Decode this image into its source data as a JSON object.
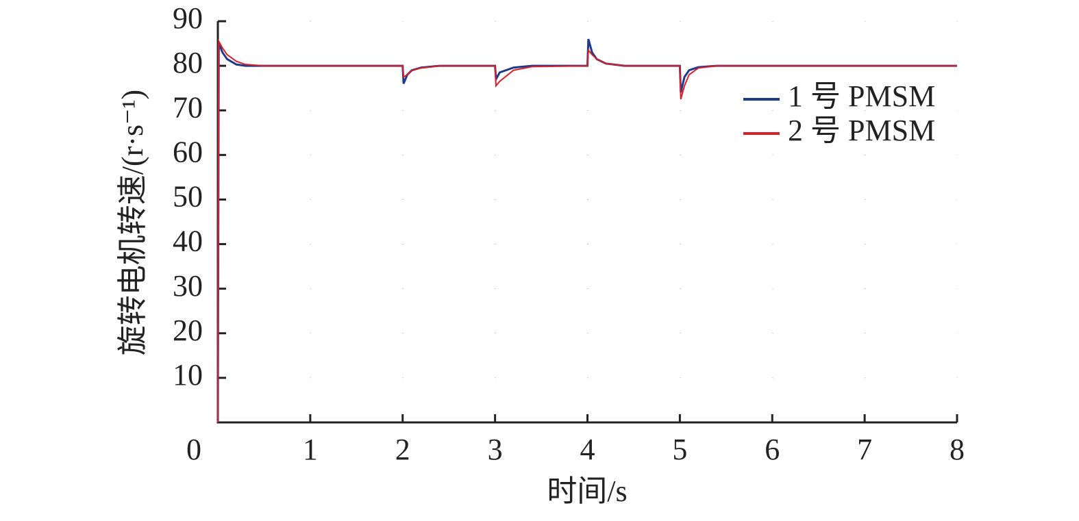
{
  "chart_data": {
    "type": "line",
    "xlabel": "时间/s",
    "ylabel": "旋转电机转速/(r·s⁻¹)",
    "x": [
      0,
      0.01,
      0.05,
      0.1,
      0.2,
      0.3,
      0.5,
      2.0,
      2.01,
      2.05,
      2.1,
      2.2,
      2.4,
      3.0,
      3.01,
      3.05,
      3.2,
      3.4,
      4.0,
      4.01,
      4.05,
      4.1,
      4.2,
      4.4,
      5.0,
      5.01,
      5.05,
      5.1,
      5.2,
      5.4,
      8
    ],
    "series": [
      {
        "name": "1 号 PMSM",
        "color": "#1f3a8a",
        "values": [
          0,
          85,
          83,
          81.5,
          80.3,
          80,
          80,
          80,
          76,
          78,
          79,
          79.6,
          80,
          80,
          77,
          78.5,
          79.6,
          80,
          80,
          86,
          83,
          81.5,
          80.5,
          80,
          80,
          74,
          77.5,
          79,
          79.7,
          80,
          80
        ]
      },
      {
        "name": "2 号 PMSM",
        "color": "#d9202a",
        "values": [
          0,
          85.5,
          84,
          82.5,
          81,
          80.3,
          80,
          80,
          77.5,
          78,
          79,
          79.5,
          80,
          80,
          75.5,
          76.5,
          79,
          79.8,
          80,
          83.5,
          82.5,
          81.5,
          80.5,
          80,
          80,
          72.5,
          75.5,
          78,
          79.5,
          80,
          80
        ]
      }
    ],
    "xlim": [
      0,
      8
    ],
    "xticks": [
      0,
      1,
      2,
      3,
      4,
      5,
      6,
      7,
      8
    ],
    "ylim": [
      0,
      90
    ],
    "yticks": [
      10,
      20,
      30,
      40,
      50,
      60,
      70,
      80,
      90
    ],
    "grid": true,
    "legend": "upper right"
  }
}
